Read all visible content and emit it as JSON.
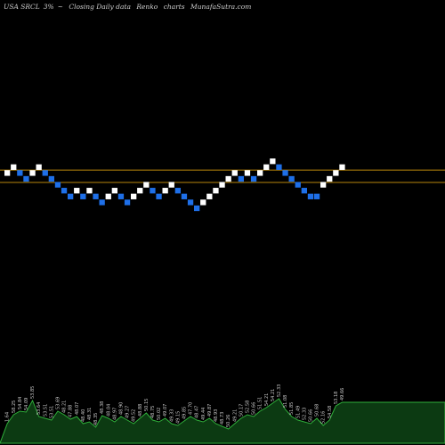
{
  "header": {
    "ticker": "USA SRCL",
    "change": "3%",
    "arrow": "~",
    "desc": "Closing Daily data",
    "chart_kind": "Renko",
    "chart_word": "charts",
    "site": "MunafaSutra.com"
  },
  "colors": {
    "background": "#000000",
    "up_brick": "#ffffff",
    "down_brick": "#1e6fe8",
    "reference_line": "#b8860b",
    "volume_fill": "#0c3a12",
    "volume_line": "#2fae3a",
    "label_text": "#c8c8c8"
  },
  "chart_data": {
    "type": "renko",
    "bricks": [
      {
        "dir": "up",
        "level": 1
      },
      {
        "dir": "up",
        "level": 2
      },
      {
        "dir": "down",
        "level": 1
      },
      {
        "dir": "down",
        "level": 0
      },
      {
        "dir": "up",
        "level": 1
      },
      {
        "dir": "up",
        "level": 2
      },
      {
        "dir": "down",
        "level": 1
      },
      {
        "dir": "down",
        "level": 0
      },
      {
        "dir": "down",
        "level": -1
      },
      {
        "dir": "down",
        "level": -2
      },
      {
        "dir": "down",
        "level": -3
      },
      {
        "dir": "up",
        "level": -2
      },
      {
        "dir": "down",
        "level": -3
      },
      {
        "dir": "up",
        "level": -2
      },
      {
        "dir": "down",
        "level": -3
      },
      {
        "dir": "down",
        "level": -4
      },
      {
        "dir": "up",
        "level": -3
      },
      {
        "dir": "up",
        "level": -2
      },
      {
        "dir": "down",
        "level": -3
      },
      {
        "dir": "down",
        "level": -4
      },
      {
        "dir": "up",
        "level": -3
      },
      {
        "dir": "up",
        "level": -2
      },
      {
        "dir": "up",
        "level": -1
      },
      {
        "dir": "down",
        "level": -2
      },
      {
        "dir": "down",
        "level": -3
      },
      {
        "dir": "up",
        "level": -2
      },
      {
        "dir": "up",
        "level": -1
      },
      {
        "dir": "down",
        "level": -2
      },
      {
        "dir": "down",
        "level": -3
      },
      {
        "dir": "down",
        "level": -4
      },
      {
        "dir": "down",
        "level": -5
      },
      {
        "dir": "up",
        "level": -4
      },
      {
        "dir": "up",
        "level": -3
      },
      {
        "dir": "up",
        "level": -2
      },
      {
        "dir": "up",
        "level": -1
      },
      {
        "dir": "up",
        "level": 0
      },
      {
        "dir": "up",
        "level": 1
      },
      {
        "dir": "down",
        "level": 0
      },
      {
        "dir": "up",
        "level": 1
      },
      {
        "dir": "down",
        "level": 0
      },
      {
        "dir": "up",
        "level": 1
      },
      {
        "dir": "up",
        "level": 2
      },
      {
        "dir": "up",
        "level": 3
      },
      {
        "dir": "down",
        "level": 2
      },
      {
        "dir": "down",
        "level": 1
      },
      {
        "dir": "down",
        "level": 0
      },
      {
        "dir": "down",
        "level": -1
      },
      {
        "dir": "down",
        "level": -2
      },
      {
        "dir": "down",
        "level": -3
      },
      {
        "dir": "down",
        "level": -3
      },
      {
        "dir": "up",
        "level": -1
      },
      {
        "dir": "up",
        "level": 0
      },
      {
        "dir": "up",
        "level": 1
      },
      {
        "dir": "up",
        "level": 2
      }
    ],
    "reference_lines": [
      1.5,
      -0.6
    ],
    "volume_labels": [
      "1.64",
      "58.25",
      "54.84",
      "54.09",
      "53.85",
      "53.64",
      "53.51",
      "53.51",
      "53.69",
      "48.21",
      "47.88",
      "48.07",
      "48.40",
      "48.31",
      "48.35",
      "48.38",
      "48.04",
      "48.97",
      "48.90",
      "49.27",
      "49.52",
      "48.88",
      "50.15",
      "48.75",
      "50.02",
      "49.07",
      "49.33",
      "49.15",
      "49.85",
      "47.70",
      "48.47",
      "49.44",
      "49.87",
      "48.93",
      "48.73",
      "50.26",
      "49.21",
      "50.17",
      "52.58",
      "50.66",
      "51.51",
      "54.21",
      "54.21",
      "52.33",
      "51.08",
      "51.85",
      "51.49",
      "52.33",
      "50.66",
      "50.68",
      "52.16",
      "54.58",
      "53.18",
      "49.66"
    ],
    "volume": [
      22,
      32,
      36,
      35,
      48,
      30,
      28,
      26,
      36,
      32,
      27,
      30,
      22,
      24,
      18,
      31,
      28,
      24,
      30,
      26,
      22,
      28,
      34,
      26,
      24,
      28,
      22,
      20,
      25,
      30,
      26,
      24,
      28,
      22,
      19,
      16,
      22,
      28,
      32,
      30,
      36,
      40,
      45,
      50,
      38,
      30,
      26,
      24,
      22,
      28,
      20,
      26,
      42,
      46
    ]
  }
}
